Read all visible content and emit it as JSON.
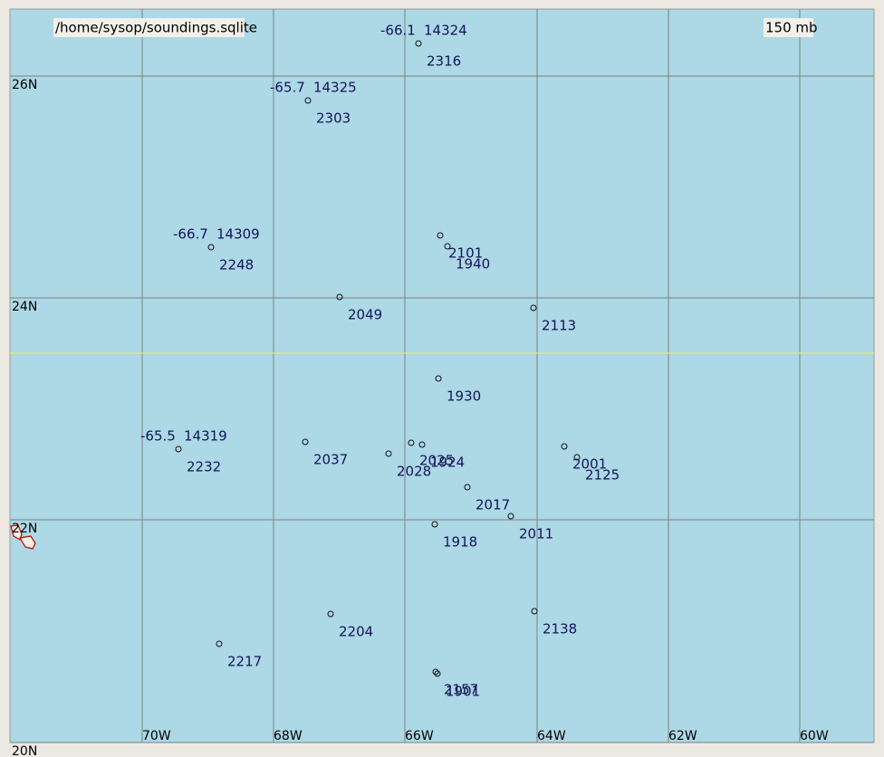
{
  "header": {
    "file": "/home/sysop/soundings.sqlite",
    "level": "150 mb"
  },
  "grid": {
    "lat_labels": [
      "26N",
      "24N",
      "22N",
      "20N"
    ],
    "lon_labels": [
      "70W",
      "68W",
      "66W",
      "64W",
      "62W",
      "60W"
    ]
  },
  "stations": [
    {
      "temp": "-66.1",
      "height": "14324",
      "time": "2316"
    },
    {
      "temp": "-65.7",
      "height": "14325",
      "time": "2303"
    },
    {
      "temp": "-66.7",
      "height": "14309",
      "time": "2248"
    },
    {
      "time": "2101"
    },
    {
      "time": "1940"
    },
    {
      "time": "2049"
    },
    {
      "time": "2113"
    },
    {
      "time": "1930"
    },
    {
      "temp": "-65.5",
      "height": "14319",
      "time": "2232"
    },
    {
      "time": "2037"
    },
    {
      "time": "2028"
    },
    {
      "time": "2025"
    },
    {
      "time": "1924"
    },
    {
      "time": "2001"
    },
    {
      "time": "2125"
    },
    {
      "time": "2017"
    },
    {
      "time": "2011"
    },
    {
      "time": "1918"
    },
    {
      "time": "2204"
    },
    {
      "time": "2138"
    },
    {
      "time": "2217"
    },
    {
      "time": "2157"
    },
    {
      "time": "1901"
    }
  ]
}
